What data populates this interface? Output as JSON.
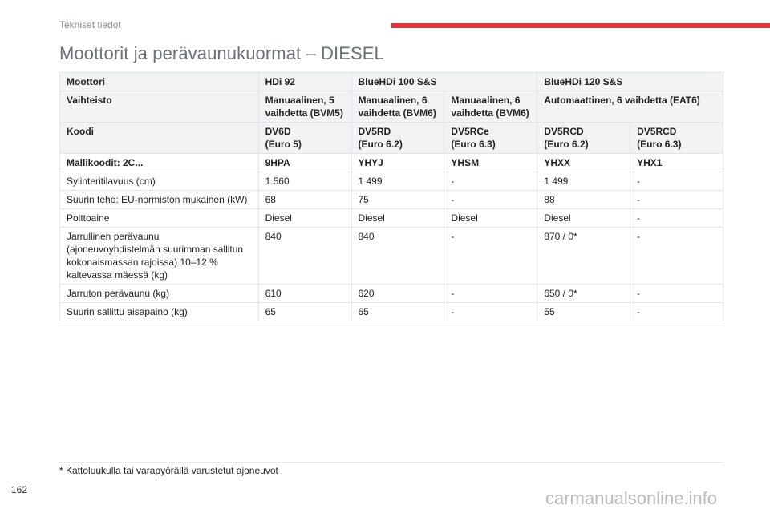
{
  "header": {
    "section": "Tekniset tiedot",
    "accent_color": "#e8323c"
  },
  "title": "Moottorit ja perävaunukuormat – DIESEL",
  "table": {
    "rows": [
      {
        "type": "header",
        "cells": [
          {
            "text": "Moottori"
          },
          {
            "text": "HDi 92"
          },
          {
            "text": "BlueHDi 100 S&S",
            "colspan": 2
          },
          {
            "text": "BlueHDi 120 S&S",
            "colspan": 2
          }
        ]
      },
      {
        "type": "header",
        "cells": [
          {
            "text": "Vaihteisto"
          },
          {
            "text": "Manuaalinen, 5\nvaihdetta (BVM5)"
          },
          {
            "text": "Manuaalinen, 6\nvaihdetta (BVM6)"
          },
          {
            "text": "Manuaalinen, 6\nvaihdetta (BVM6)"
          },
          {
            "text": "Automaattinen, 6 vaihdetta (EAT6)",
            "colspan": 2
          }
        ]
      },
      {
        "type": "header",
        "cells": [
          {
            "text": "Koodi"
          },
          {
            "text": "DV6D\n(Euro 5)"
          },
          {
            "text": "DV5RD\n(Euro 6.2)"
          },
          {
            "text": "DV5RCe\n(Euro 6.3)"
          },
          {
            "text": "DV5RCD\n(Euro 6.2)"
          },
          {
            "text": "DV5RCD\n(Euro 6.3)"
          }
        ]
      },
      {
        "type": "bold",
        "cells": [
          {
            "text": "Mallikoodit: 2C..."
          },
          {
            "text": "9HPA"
          },
          {
            "text": "YHYJ"
          },
          {
            "text": "YHSM"
          },
          {
            "text": "YHXX"
          },
          {
            "text": "YHX1"
          }
        ]
      },
      {
        "type": "normal",
        "cells": [
          {
            "text": "Sylinteritilavuus (cm)"
          },
          {
            "text": "1 560"
          },
          {
            "text": "1 499"
          },
          {
            "text": "-"
          },
          {
            "text": "1 499"
          },
          {
            "text": "-"
          }
        ]
      },
      {
        "type": "normal",
        "cells": [
          {
            "text": "Suurin teho: EU-normiston mukainen (kW)"
          },
          {
            "text": "68"
          },
          {
            "text": "75"
          },
          {
            "text": "-"
          },
          {
            "text": "88"
          },
          {
            "text": "-"
          }
        ]
      },
      {
        "type": "normal",
        "cells": [
          {
            "text": "Polttoaine"
          },
          {
            "text": "Diesel"
          },
          {
            "text": "Diesel"
          },
          {
            "text": "Diesel"
          },
          {
            "text": "Diesel"
          },
          {
            "text": "-"
          }
        ]
      },
      {
        "type": "normal",
        "cells": [
          {
            "text": "Jarrullinen perävaunu\n(ajoneuvoyhdistelmän suurimman sallitun\nkokonaismassan rajoissa) 10–12 %\nkaltevassa mäessä (kg)"
          },
          {
            "text": "840"
          },
          {
            "text": "840"
          },
          {
            "text": "-"
          },
          {
            "text": "870 / 0*"
          },
          {
            "text": "-"
          }
        ]
      },
      {
        "type": "normal",
        "cells": [
          {
            "text": "Jarruton perävaunu (kg)"
          },
          {
            "text": "610"
          },
          {
            "text": "620"
          },
          {
            "text": "-"
          },
          {
            "text": "650 / 0*"
          },
          {
            "text": "-"
          }
        ]
      },
      {
        "type": "normal",
        "cells": [
          {
            "text": "Suurin sallittu aisapaino (kg)"
          },
          {
            "text": "65"
          },
          {
            "text": "65"
          },
          {
            "text": "-"
          },
          {
            "text": "55"
          },
          {
            "text": "-"
          }
        ]
      }
    ]
  },
  "footnote": "* Kattoluukulla tai varapyörällä varustetut ajoneuvot",
  "page_number": "162",
  "watermark": "carmanualsonline.info"
}
